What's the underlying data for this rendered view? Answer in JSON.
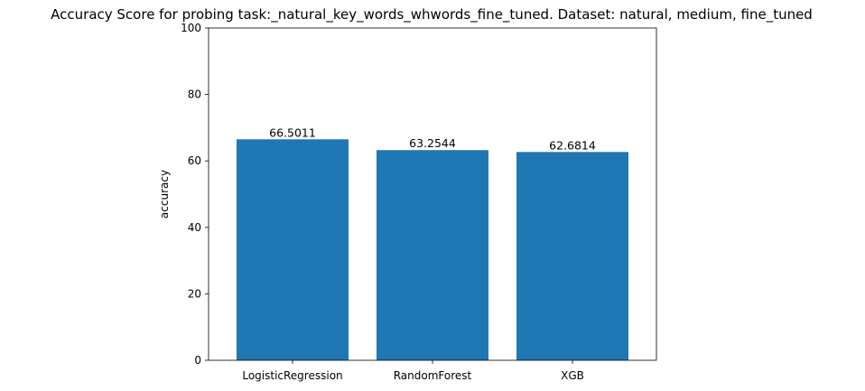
{
  "chart_data": {
    "type": "bar",
    "title": "Accuracy Score for probing task:_natural_key_words_whwords_fine_tuned. Dataset: natural, medium, fine_tuned",
    "categories": [
      "LogisticRegression",
      "RandomForest",
      "XGB"
    ],
    "values": [
      66.5011,
      63.2544,
      62.6814
    ],
    "data_labels": [
      "66.5011",
      "63.2544",
      "62.6814"
    ],
    "xlabel": "",
    "ylabel": "accuracy",
    "ylim": [
      0,
      100
    ],
    "yticks": [
      0,
      20,
      40,
      60,
      80,
      100
    ],
    "grid": false,
    "bar_color": "#1f77b4"
  }
}
